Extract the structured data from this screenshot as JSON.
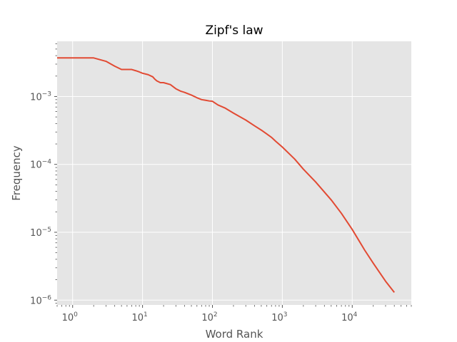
{
  "chart_data": {
    "type": "line",
    "title": "Zipf's law",
    "xlabel": "Word Rank",
    "ylabel": "Frequency",
    "xscale": "log",
    "yscale": "log",
    "xlim": [
      0.6,
      70000
    ],
    "ylim": [
      8.5e-07,
      0.0065
    ],
    "grid": true,
    "style": "ggplot",
    "line_color": "#e24a33",
    "background_color": "#e5e5e5",
    "x_ticks": [
      {
        "base": "10",
        "exp": "0"
      },
      {
        "base": "10",
        "exp": "1"
      },
      {
        "base": "10",
        "exp": "2"
      },
      {
        "base": "10",
        "exp": "3"
      },
      {
        "base": "10",
        "exp": "4"
      }
    ],
    "y_ticks": [
      {
        "base": "10",
        "exp": "−6"
      },
      {
        "base": "10",
        "exp": "−5"
      },
      {
        "base": "10",
        "exp": "−4"
      },
      {
        "base": "10",
        "exp": "−3"
      }
    ],
    "series": [
      {
        "x": [
          0.6,
          1,
          2,
          3,
          4,
          5,
          6,
          7,
          8,
          9,
          10,
          12,
          14,
          15,
          16,
          18,
          20,
          25,
          30,
          35,
          40,
          50,
          60,
          70,
          80,
          90,
          100,
          120,
          150,
          200,
          250,
          300,
          400,
          500,
          600,
          700,
          800,
          1000,
          1200,
          1500,
          2000,
          3000,
          5000,
          7000,
          10000,
          15000,
          20000,
          30000,
          40000
        ],
        "y": [
          0.0037,
          0.0037,
          0.0037,
          0.0033,
          0.0028,
          0.0025,
          0.0025,
          0.0025,
          0.0024,
          0.0023,
          0.0022,
          0.0021,
          0.00195,
          0.0018,
          0.0017,
          0.0016,
          0.0016,
          0.0015,
          0.0013,
          0.0012,
          0.00115,
          0.00105,
          0.00096,
          0.0009,
          0.00088,
          0.00086,
          0.00085,
          0.00075,
          0.00068,
          0.00057,
          0.0005,
          0.00045,
          0.00037,
          0.00032,
          0.00028,
          0.00025,
          0.00022,
          0.00018,
          0.00015,
          0.00012,
          8.5e-05,
          5.5e-05,
          3e-05,
          1.9e-05,
          1.1e-05,
          5.5e-06,
          3.5e-06,
          1.9e-06,
          1.3e-06
        ]
      }
    ]
  }
}
